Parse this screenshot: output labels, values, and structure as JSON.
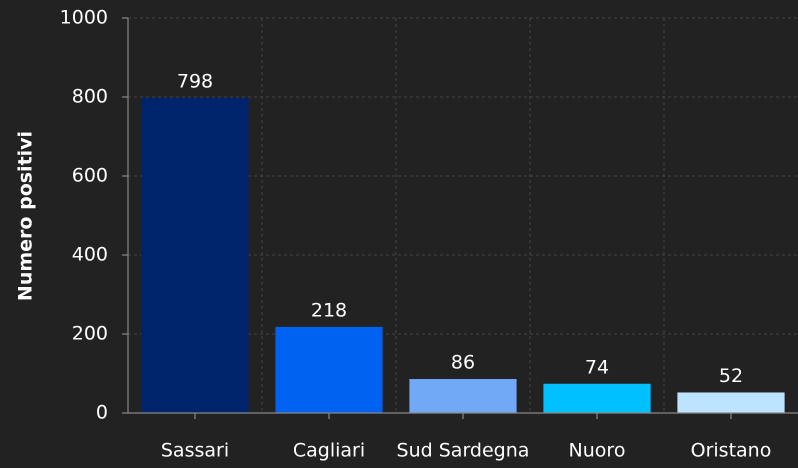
{
  "chart_data": {
    "type": "bar",
    "y_label": "Numero positivi",
    "categories": [
      "Sassari",
      "Cagliari",
      "Sud Sardegna",
      "Nuoro",
      "Oristano"
    ],
    "values": [
      798,
      218,
      86,
      74,
      52
    ],
    "colors": [
      "#00246b",
      "#0062f0",
      "#72a9f7",
      "#00c0ff",
      "#bde3ff"
    ],
    "ylim": [
      0,
      1000
    ],
    "yticks": [
      0,
      200,
      400,
      600,
      800,
      1000
    ],
    "grid": true
  }
}
